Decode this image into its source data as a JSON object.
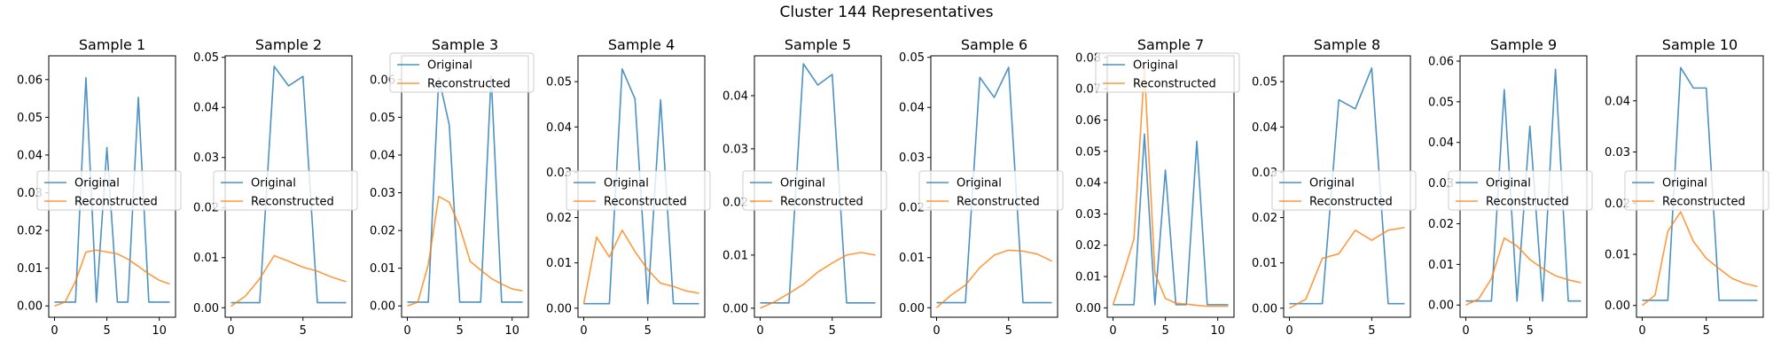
{
  "figure_title": "Cluster 144 Representatives",
  "colors": {
    "original": "#1f77b4",
    "reconstructed": "#ff7f0e",
    "axes": "#000000",
    "background": "#ffffff"
  },
  "chart_data": [
    {
      "type": "line",
      "title": "Sample 1",
      "xlim": [
        -0.55,
        11.55
      ],
      "ylim": [
        -0.003,
        0.0663
      ],
      "xticks": [
        0,
        5,
        10
      ],
      "yticks": [
        0.0,
        0.01,
        0.02,
        0.03,
        0.04,
        0.05,
        0.06
      ],
      "ytick_labels": [
        "0.00",
        "0.01",
        "0.02",
        "0.03",
        "0.04",
        "0.05",
        "0.06"
      ],
      "legend": "center-left",
      "grid": false,
      "series": [
        {
          "name": "Original",
          "x": [
            0,
            1,
            2,
            3,
            4,
            5,
            6,
            7,
            8,
            9,
            10,
            11
          ],
          "values": [
            0.001,
            0.001,
            0.001,
            0.0605,
            0.001,
            0.042,
            0.001,
            0.001,
            0.0553,
            0.001,
            0.001,
            0.001
          ]
        },
        {
          "name": "Reconstructed",
          "x": [
            0,
            1,
            2,
            3,
            4,
            5,
            6,
            7,
            8,
            9,
            10,
            11
          ],
          "values": [
            0.0,
            0.001,
            0.0065,
            0.0143,
            0.0148,
            0.0143,
            0.0138,
            0.0124,
            0.0105,
            0.0085,
            0.0068,
            0.0058
          ]
        }
      ]
    },
    {
      "type": "line",
      "title": "Sample 2",
      "xlim": [
        -0.4,
        8.4
      ],
      "ylim": [
        -0.0019,
        0.0503
      ],
      "xticks": [
        0,
        5
      ],
      "yticks": [
        0.0,
        0.01,
        0.02,
        0.03,
        0.04,
        0.05
      ],
      "ytick_labels": [
        "0.00",
        "0.01",
        "0.02",
        "0.03",
        "0.04",
        "0.05"
      ],
      "legend": "center-left",
      "grid": false,
      "series": [
        {
          "name": "Original",
          "x": [
            0,
            1,
            2,
            3,
            4,
            5,
            6,
            7,
            8
          ],
          "values": [
            0.001,
            0.001,
            0.001,
            0.0482,
            0.0443,
            0.0462,
            0.001,
            0.001,
            0.001
          ]
        },
        {
          "name": "Reconstructed",
          "x": [
            0,
            1,
            2,
            3,
            4,
            5,
            6,
            7,
            8
          ],
          "values": [
            0.0003,
            0.0023,
            0.0058,
            0.0104,
            0.0093,
            0.0081,
            0.0073,
            0.0061,
            0.0052
          ]
        }
      ]
    },
    {
      "type": "line",
      "title": "Sample 3",
      "xlim": [
        -0.55,
        11.55
      ],
      "ylim": [
        -0.003,
        0.0663
      ],
      "xticks": [
        0,
        5,
        10
      ],
      "yticks": [
        0.0,
        0.01,
        0.02,
        0.03,
        0.04,
        0.05,
        0.06
      ],
      "ytick_labels": [
        "0.00",
        "0.01",
        "0.02",
        "0.03",
        "0.04",
        "0.05",
        "0.06"
      ],
      "legend": "upper-left",
      "grid": false,
      "series": [
        {
          "name": "Original",
          "x": [
            0,
            1,
            2,
            3,
            4,
            5,
            6,
            7,
            8,
            9,
            10,
            11
          ],
          "values": [
            0.001,
            0.001,
            0.001,
            0.0605,
            0.048,
            0.001,
            0.001,
            0.001,
            0.061,
            0.001,
            0.001,
            0.001
          ]
        },
        {
          "name": "Reconstructed",
          "x": [
            0,
            1,
            2,
            3,
            4,
            5,
            6,
            7,
            8,
            9,
            10,
            11
          ],
          "values": [
            0.0,
            0.001,
            0.011,
            0.029,
            0.0275,
            0.021,
            0.0118,
            0.0095,
            0.0073,
            0.0058,
            0.0045,
            0.004
          ]
        }
      ]
    },
    {
      "type": "line",
      "title": "Sample 4",
      "xlim": [
        -0.45,
        9.45
      ],
      "ylim": [
        -0.002,
        0.0557
      ],
      "xticks": [
        0,
        5
      ],
      "yticks": [
        0.0,
        0.01,
        0.02,
        0.03,
        0.04,
        0.05
      ],
      "ytick_labels": [
        "0.00",
        "0.01",
        "0.02",
        "0.03",
        "0.04",
        "0.05"
      ],
      "legend": "center-left",
      "grid": false,
      "series": [
        {
          "name": "Original",
          "x": [
            0,
            1,
            2,
            3,
            4,
            5,
            6,
            7,
            8,
            9
          ],
          "values": [
            0.001,
            0.001,
            0.001,
            0.0528,
            0.0462,
            0.001,
            0.046,
            0.001,
            0.001,
            0.001
          ]
        },
        {
          "name": "Reconstructed",
          "x": [
            0,
            1,
            2,
            3,
            4,
            5,
            6,
            7,
            8,
            9
          ],
          "values": [
            0.001,
            0.0157,
            0.0113,
            0.0172,
            0.0125,
            0.0085,
            0.0055,
            0.0048,
            0.0038,
            0.0033
          ]
        }
      ]
    },
    {
      "type": "line",
      "title": "Sample 5",
      "xlim": [
        -0.4,
        8.4
      ],
      "ylim": [
        -0.0017,
        0.0475
      ],
      "xticks": [
        0,
        5
      ],
      "yticks": [
        0.0,
        0.01,
        0.02,
        0.03,
        0.04
      ],
      "ytick_labels": [
        "0.00",
        "0.01",
        "0.02",
        "0.03",
        "0.04"
      ],
      "legend": "center-left",
      "grid": false,
      "series": [
        {
          "name": "Original",
          "x": [
            0,
            1,
            2,
            3,
            4,
            5,
            6,
            7,
            8
          ],
          "values": [
            0.001,
            0.001,
            0.001,
            0.046,
            0.042,
            0.044,
            0.001,
            0.001,
            0.001
          ]
        },
        {
          "name": "Reconstructed",
          "x": [
            0,
            1,
            2,
            3,
            4,
            5,
            6,
            7,
            8
          ],
          "values": [
            0.0,
            0.0012,
            0.0028,
            0.0045,
            0.0068,
            0.0085,
            0.01,
            0.0105,
            0.01
          ]
        }
      ]
    },
    {
      "type": "line",
      "title": "Sample 6",
      "xlim": [
        -0.4,
        8.4
      ],
      "ylim": [
        -0.0019,
        0.0503
      ],
      "xticks": [
        0,
        5
      ],
      "yticks": [
        0.0,
        0.01,
        0.02,
        0.03,
        0.04,
        0.05
      ],
      "ytick_labels": [
        "0.00",
        "0.01",
        "0.02",
        "0.03",
        "0.04",
        "0.05"
      ],
      "legend": "center-left",
      "grid": false,
      "series": [
        {
          "name": "Original",
          "x": [
            0,
            1,
            2,
            3,
            4,
            5,
            6,
            7,
            8
          ],
          "values": [
            0.001,
            0.001,
            0.001,
            0.046,
            0.042,
            0.048,
            0.001,
            0.001,
            0.001
          ]
        },
        {
          "name": "Reconstructed",
          "x": [
            0,
            1,
            2,
            3,
            4,
            5,
            6,
            7,
            8
          ],
          "values": [
            0.0,
            0.0025,
            0.0045,
            0.008,
            0.0105,
            0.0115,
            0.0113,
            0.0107,
            0.0093
          ]
        }
      ]
    },
    {
      "type": "line",
      "title": "Sample 7",
      "xlim": [
        -0.55,
        11.55
      ],
      "ylim": [
        -0.003,
        0.0805
      ],
      "xticks": [
        0,
        5,
        10
      ],
      "yticks": [
        0.0,
        0.01,
        0.02,
        0.03,
        0.04,
        0.05,
        0.06,
        0.07,
        0.08
      ],
      "ytick_labels": [
        "0.00",
        "0.01",
        "0.02",
        "0.03",
        "0.04",
        "0.05",
        "0.06",
        "0.07",
        "0.08"
      ],
      "legend": "upper-left",
      "grid": false,
      "series": [
        {
          "name": "Original",
          "x": [
            0,
            1,
            2,
            3,
            4,
            5,
            6,
            7,
            8,
            9,
            10,
            11
          ],
          "values": [
            0.001,
            0.001,
            0.001,
            0.0555,
            0.001,
            0.044,
            0.001,
            0.001,
            0.0532,
            0.001,
            0.001,
            0.001
          ]
        },
        {
          "name": "Reconstructed",
          "x": [
            0,
            1,
            2,
            3,
            4,
            5,
            6,
            7,
            8,
            9,
            10,
            11
          ],
          "values": [
            0.001,
            0.011,
            0.022,
            0.0765,
            0.011,
            0.003,
            0.0015,
            0.0012,
            0.0008,
            0.0005,
            0.0005,
            0.0005
          ]
        }
      ]
    },
    {
      "type": "line",
      "title": "Sample 8",
      "xlim": [
        -0.35,
        7.35
      ],
      "ylim": [
        -0.002,
        0.0557
      ],
      "xticks": [
        0,
        5
      ],
      "yticks": [
        0.0,
        0.01,
        0.02,
        0.03,
        0.04,
        0.05
      ],
      "ytick_labels": [
        "0.00",
        "0.01",
        "0.02",
        "0.03",
        "0.04",
        "0.05"
      ],
      "legend": "center-left",
      "grid": false,
      "series": [
        {
          "name": "Original",
          "x": [
            0,
            1,
            2,
            3,
            4,
            5,
            6,
            7
          ],
          "values": [
            0.001,
            0.001,
            0.001,
            0.046,
            0.044,
            0.053,
            0.001,
            0.001
          ]
        },
        {
          "name": "Reconstructed",
          "x": [
            0,
            1,
            2,
            3,
            4,
            5,
            6,
            7
          ],
          "values": [
            0.0,
            0.002,
            0.011,
            0.012,
            0.0172,
            0.015,
            0.0172,
            0.0178
          ]
        }
      ]
    },
    {
      "type": "line",
      "title": "Sample 9",
      "xlim": [
        -0.45,
        9.45
      ],
      "ylim": [
        -0.003,
        0.0613
      ],
      "xticks": [
        0,
        5
      ],
      "yticks": [
        0.0,
        0.01,
        0.02,
        0.03,
        0.04,
        0.05,
        0.06
      ],
      "ytick_labels": [
        "0.00",
        "0.01",
        "0.02",
        "0.03",
        "0.04",
        "0.05",
        "0.06"
      ],
      "legend": "center-left",
      "grid": false,
      "series": [
        {
          "name": "Original",
          "x": [
            0,
            1,
            2,
            3,
            4,
            5,
            6,
            7,
            8,
            9
          ],
          "values": [
            0.001,
            0.001,
            0.001,
            0.053,
            0.001,
            0.044,
            0.001,
            0.058,
            0.001,
            0.001
          ]
        },
        {
          "name": "Reconstructed",
          "x": [
            0,
            1,
            2,
            3,
            4,
            5,
            6,
            7,
            8,
            9
          ],
          "values": [
            0.0,
            0.0015,
            0.0065,
            0.0165,
            0.0145,
            0.0112,
            0.009,
            0.0072,
            0.0062,
            0.0055
          ]
        }
      ]
    },
    {
      "type": "line",
      "title": "Sample 10",
      "xlim": [
        -0.45,
        9.45
      ],
      "ylim": [
        -0.0023,
        0.0488
      ],
      "xticks": [
        0,
        5
      ],
      "yticks": [
        0.0,
        0.01,
        0.02,
        0.03,
        0.04
      ],
      "ytick_labels": [
        "0.00",
        "0.01",
        "0.02",
        "0.03",
        "0.04"
      ],
      "legend": "center-left",
      "grid": false,
      "series": [
        {
          "name": "Original",
          "x": [
            0,
            1,
            2,
            3,
            4,
            5,
            6,
            7,
            8,
            9
          ],
          "values": [
            0.001,
            0.001,
            0.001,
            0.0465,
            0.0425,
            0.0425,
            0.001,
            0.001,
            0.001,
            0.001
          ]
        },
        {
          "name": "Reconstructed",
          "x": [
            0,
            1,
            2,
            3,
            4,
            5,
            6,
            7,
            8,
            9
          ],
          "values": [
            0.0,
            0.002,
            0.0145,
            0.0183,
            0.0125,
            0.0092,
            0.0072,
            0.0053,
            0.0043,
            0.0037
          ]
        }
      ]
    }
  ]
}
